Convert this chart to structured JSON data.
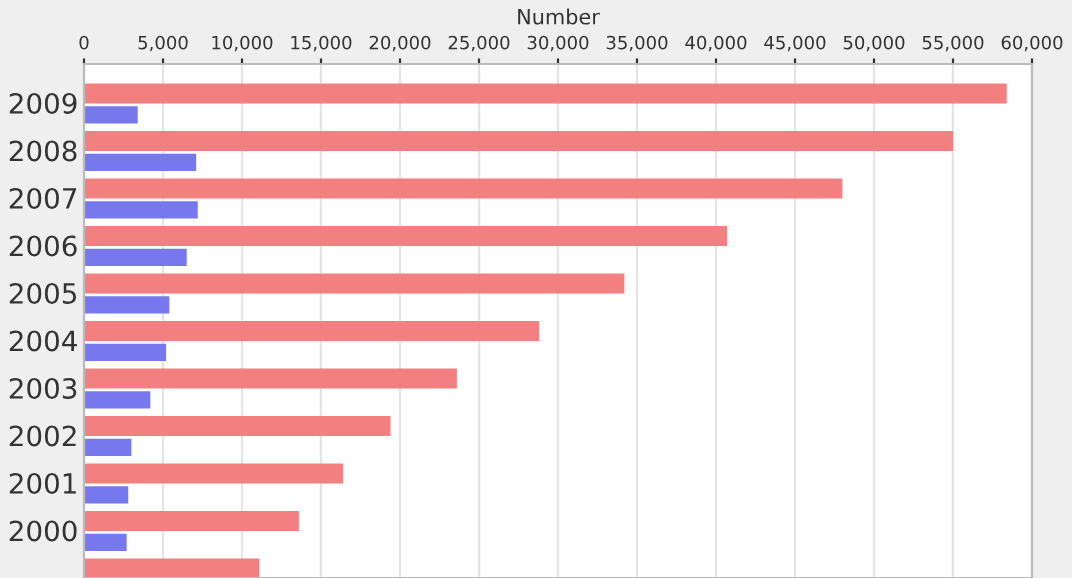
{
  "chart_data": {
    "type": "bar",
    "orientation": "horizontal",
    "xlabel": "Number",
    "categories": [
      "2009",
      "2008",
      "2007",
      "2006",
      "2005",
      "2004",
      "2003",
      "2002",
      "2001",
      "2000",
      null
    ],
    "series": [
      {
        "color": "#f28080",
        "values": [
          58400,
          55000,
          48000,
          40700,
          34200,
          28800,
          23600,
          19400,
          16400,
          13600,
          11100
        ]
      },
      {
        "color": "#7878ee",
        "values": [
          3400,
          7100,
          7200,
          6500,
          5400,
          5200,
          4200,
          3000,
          2800,
          2700,
          null
        ]
      }
    ],
    "xlim": [
      0,
      60000
    ],
    "xticks": [
      {
        "value": 0,
        "label": "0"
      },
      {
        "value": 5000,
        "label": "5,000"
      },
      {
        "value": 10000,
        "label": "10,000"
      },
      {
        "value": 15000,
        "label": "15,000"
      },
      {
        "value": 20000,
        "label": "20,000"
      },
      {
        "value": 25000,
        "label": "25,000"
      },
      {
        "value": 30000,
        "label": "30,000"
      },
      {
        "value": 35000,
        "label": "35,000"
      },
      {
        "value": 40000,
        "label": "40,000"
      },
      {
        "value": 45000,
        "label": "45,000"
      },
      {
        "value": 50000,
        "label": "50,000"
      },
      {
        "value": 55000,
        "label": "55,000"
      },
      {
        "value": 60000,
        "label": "60,000"
      }
    ],
    "grid": "x",
    "legend": false
  }
}
